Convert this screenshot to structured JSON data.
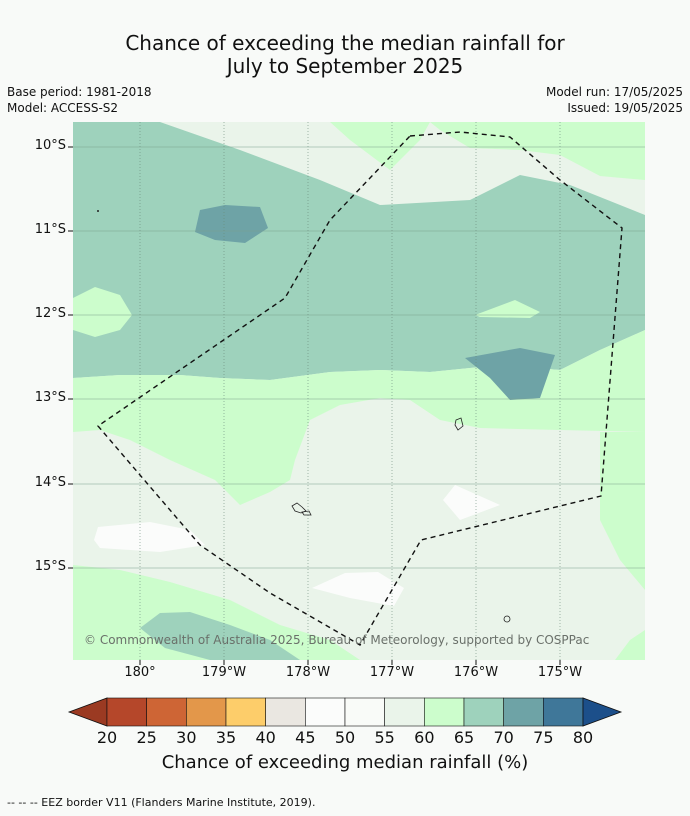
{
  "title_line1": "Chance of exceeding the median rainfall for",
  "title_line2": "July to September 2025",
  "base_period": "Base period: 1981-2018",
  "model": "Model: ACCESS-S2",
  "model_run": "Model run: 17/05/2025",
  "issued": "Issued: 19/05/2025",
  "copyright": "© Commonwealth of Australia 2025, Bureau of Meteorology, supported by COSPPac",
  "lat_labels": [
    "10°S",
    "11°S",
    "12°S",
    "13°S",
    "14°S",
    "15°S"
  ],
  "lon_labels": [
    "180°",
    "179°W",
    "178°W",
    "177°W",
    "176°W",
    "175°W"
  ],
  "colorbar": {
    "ticks": [
      "20",
      "25",
      "30",
      "35",
      "40",
      "45",
      "50",
      "55",
      "60",
      "65",
      "70",
      "75",
      "80"
    ],
    "colors": [
      "#9b3a22",
      "#b5472a",
      "#ce6535",
      "#e3974a",
      "#fdcd6a",
      "#eae7e1",
      "#fbfcfb",
      "#f9fbf8",
      "#eaf4ea",
      "#ccfdcc",
      "#9ed2bc",
      "#6ea3a6",
      "#3f7799",
      "#1c4f8a"
    ],
    "label": "Chance of exceeding median rainfall (%)"
  },
  "footer": "--  --  -- EEZ border V11 (Flanders Marine Institute, 2019).",
  "map_colors": {
    "c55": "#eaf4ea",
    "c60": "#ccfdcc",
    "c65": "#9ed2bc",
    "c70": "#6ea3a6",
    "c50": "#fbfcfb"
  }
}
